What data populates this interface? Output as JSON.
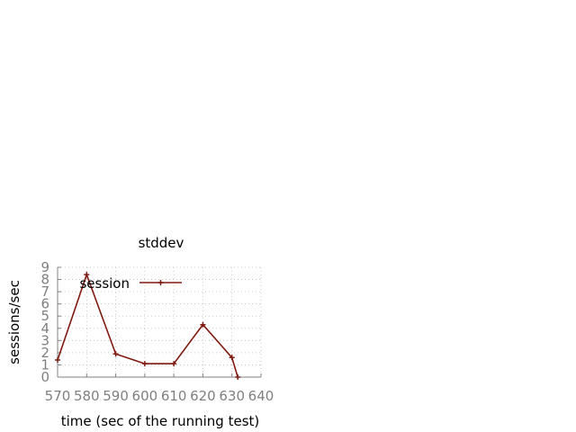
{
  "chart_data": {
    "type": "line",
    "title": "stddev",
    "xlabel": "time (sec of the running test)",
    "ylabel": "sessions/sec",
    "xlim": [
      570,
      640
    ],
    "ylim": [
      0,
      9
    ],
    "x_ticks": [
      570,
      580,
      590,
      600,
      610,
      620,
      630,
      640
    ],
    "y_ticks": [
      0,
      1,
      2,
      3,
      4,
      5,
      6,
      7,
      8,
      9
    ],
    "grid": true,
    "legend_position": "top-left",
    "series": [
      {
        "name": "session",
        "color": "#7f1a10",
        "x": [
          570,
          580,
          590,
          600,
          610,
          620,
          630,
          632
        ],
        "y": [
          1.4,
          8.4,
          1.9,
          1.1,
          1.1,
          4.3,
          1.6,
          0.0
        ]
      }
    ]
  }
}
